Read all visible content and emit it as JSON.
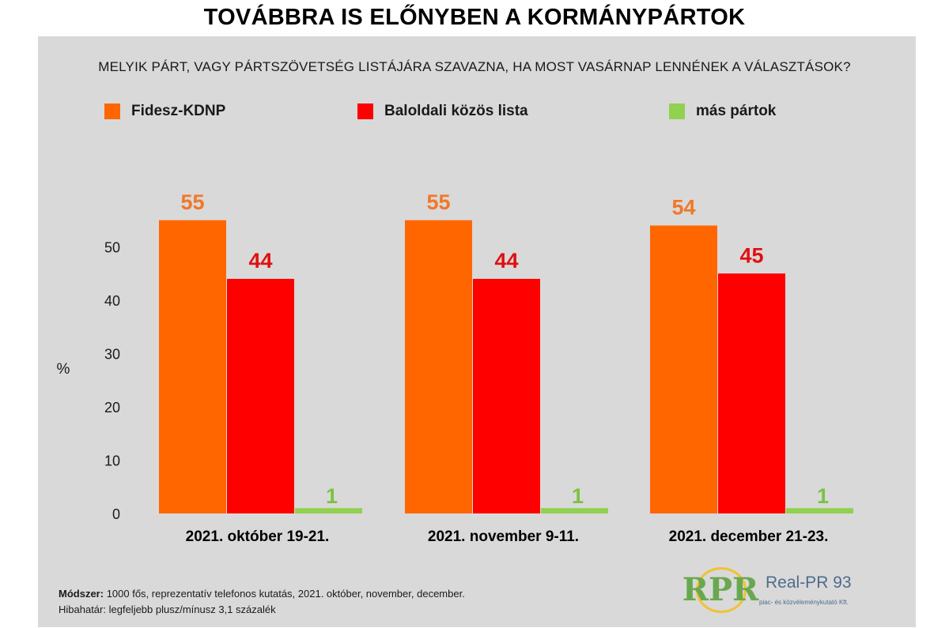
{
  "title": "TOVÁBBRA IS ELŐNYBEN A KORMÁNYPÁRTOK",
  "subtitle": "MELYIK PÁRT, VAGY PÁRTSZÖVETSÉG LISTÁJÁRA SZAVAZNA, HA MOST VASÁRNAP LENNÉNEK A VÁLASZTÁSOK?",
  "legend": [
    {
      "label": "Fidesz-KDNP",
      "color": "#ff6600"
    },
    {
      "label": "Baloldali közös lista",
      "color": "#ff0000"
    },
    {
      "label": "más pártok",
      "color": "#92d050"
    }
  ],
  "chart_data": {
    "type": "bar",
    "title": "TOVÁBBRA IS ELŐNYBEN A KORMÁNYPÁRTOK",
    "xlabel": "",
    "ylabel": "%",
    "ylim": [
      0,
      55
    ],
    "yticks": [
      0,
      10,
      20,
      30,
      40,
      50
    ],
    "categories": [
      "2021. október 19-21.",
      "2021. november 9-11.",
      "2021. december 21-23."
    ],
    "series": [
      {
        "name": "Fidesz-KDNP",
        "color": "#ff6600",
        "label_color": "#f0782a",
        "values": [
          55,
          55,
          54
        ]
      },
      {
        "name": "Baloldali közös lista",
        "color": "#ff0000",
        "label_color": "#e01010",
        "values": [
          44,
          44,
          45
        ]
      },
      {
        "name": "más pártok",
        "color": "#92d050",
        "label_color": "#7cc242",
        "values": [
          1,
          1,
          1
        ]
      }
    ],
    "legend_position": "top",
    "grid": false
  },
  "footer": {
    "method_label": "Módszer:",
    "method_text": "1000 fős, reprezentatív telefonos kutatás, 2021. október, november, december.",
    "error_label": "Hibahatár:",
    "error_text": "legfeljebb plusz/mínusz 3,1 százalék"
  },
  "logo": {
    "mark": "RPR",
    "name": "Real-PR 93",
    "tagline": "piac- és közvéleménykutató Kft."
  }
}
